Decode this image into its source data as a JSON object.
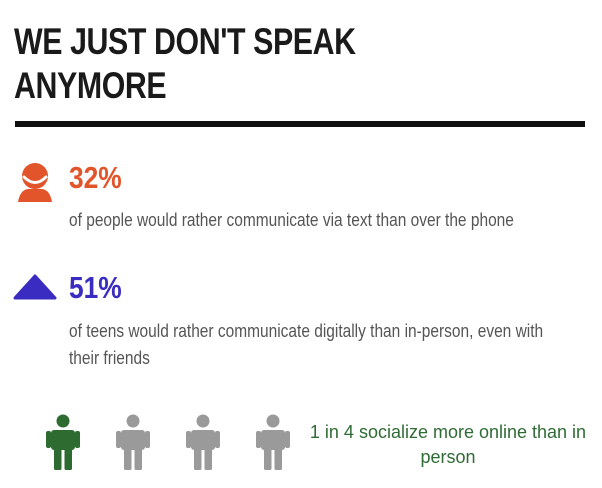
{
  "header": {
    "title_line1": "WE JUST DON'T SPEAK",
    "title_line2": "ANYMORE"
  },
  "stats": [
    {
      "percent": "32%",
      "description": "of people would rather communicate via text than over the phone",
      "icon": "person-icon",
      "color": "#e2552b"
    },
    {
      "percent": "51%",
      "description_line1": "of teens would rather communicate digitally than in-person, even with",
      "description_line2": "their friends",
      "icon": "triangle-icon",
      "color": "#3a2cc0"
    }
  ],
  "ratio": {
    "text_line1": "1 in 4 socialize more online than in",
    "text_line2": "person",
    "highlighted": 1,
    "total": 4,
    "highlight_color": "#2e6b31",
    "muted_color": "#9a9a9a"
  }
}
